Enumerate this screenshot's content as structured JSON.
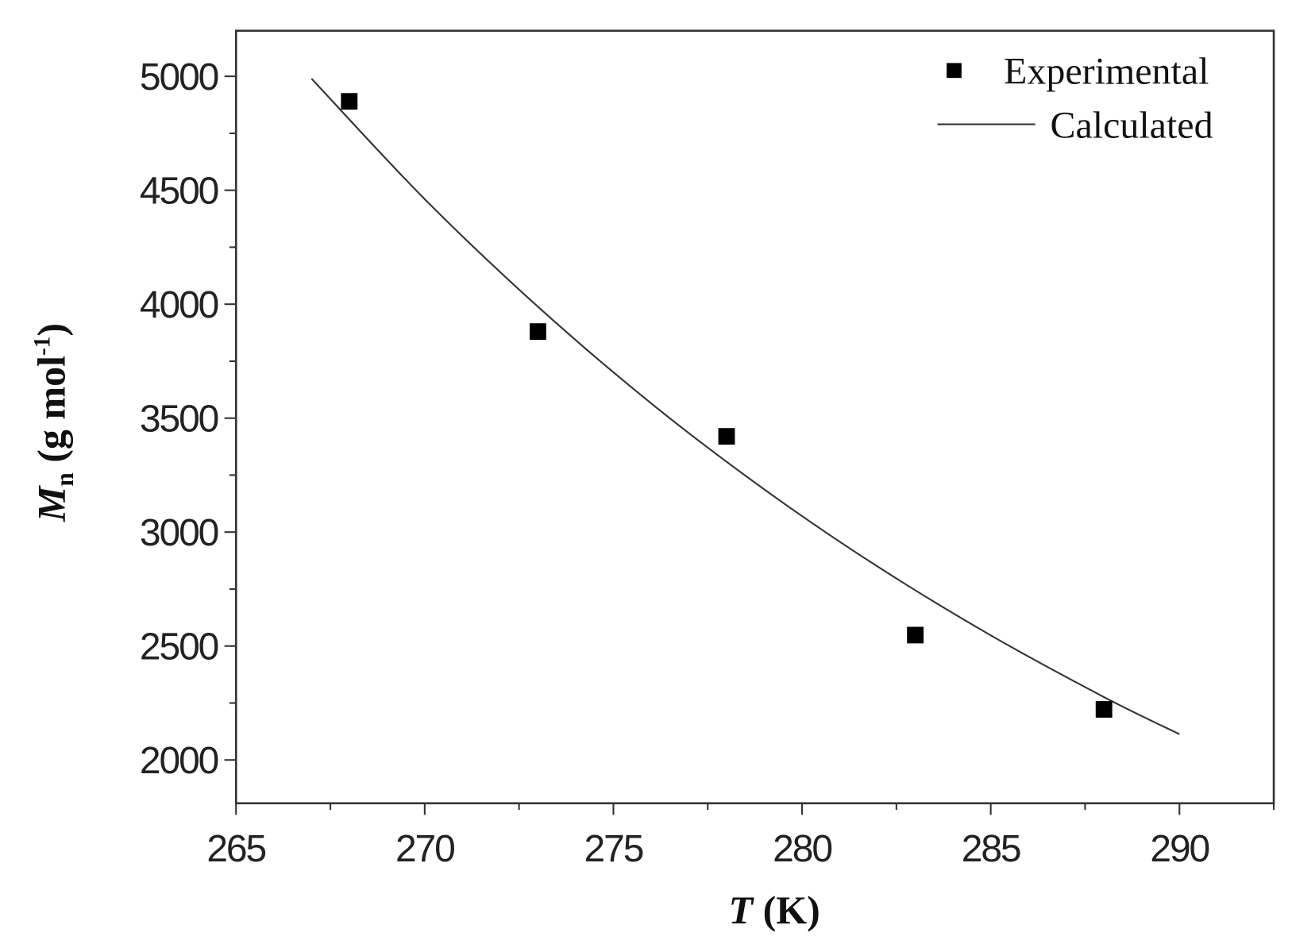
{
  "chart_data": {
    "type": "scatter",
    "xlabel": {
      "symbol": "T",
      "unit": "(K)"
    },
    "ylabel": {
      "symbol": "M",
      "subscript": "n",
      "unit_open": "(g mol",
      "superscript": "-1",
      "unit_close": ")"
    },
    "xlim": [
      265,
      292.5
    ],
    "ylim": [
      1810,
      5200
    ],
    "x_ticks": [
      265,
      270,
      275,
      280,
      285,
      290
    ],
    "y_ticks": [
      2000,
      2500,
      3000,
      3500,
      4000,
      4500,
      5000
    ],
    "grid": false,
    "legend_position": "top-right",
    "series": [
      {
        "name": "Experimental",
        "type": "scatter",
        "marker": "square",
        "color": "#000000",
        "x": [
          268,
          273,
          278,
          283,
          288
        ],
        "y": [
          4890,
          3880,
          3420,
          2548,
          2222
        ]
      },
      {
        "name": "Calculated",
        "type": "line",
        "color": "#333333",
        "x": [
          267,
          270,
          273,
          276,
          279,
          282,
          285,
          288,
          290
        ],
        "y": [
          4990,
          4461,
          3989,
          3565,
          3187,
          2849,
          2547,
          2276,
          2113
        ]
      }
    ]
  }
}
